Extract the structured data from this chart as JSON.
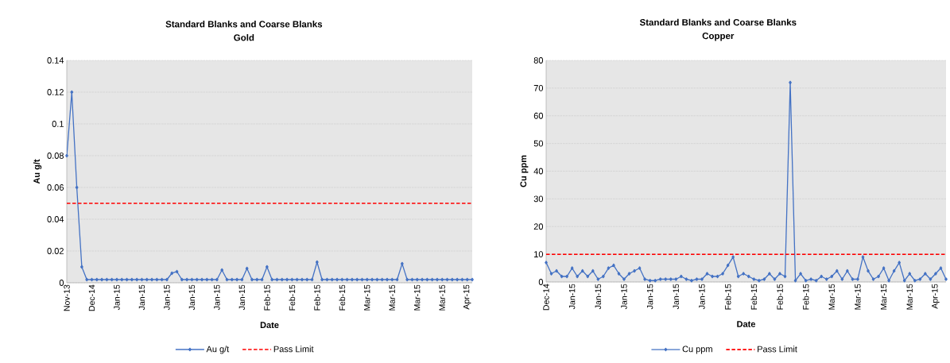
{
  "chart_data": [
    {
      "type": "line",
      "title": "Standard Blanks and Coarse Blanks",
      "subtitle": "Gold",
      "xlabel": "Date",
      "ylabel": "Au g/t",
      "categories": [
        "Nov-13",
        null,
        null,
        null,
        null,
        "Dec-14",
        null,
        null,
        null,
        null,
        "Jan-15",
        null,
        null,
        null,
        null,
        "Jan-15",
        null,
        null,
        null,
        null,
        "Jan-15",
        null,
        null,
        null,
        null,
        "Jan-15",
        null,
        null,
        null,
        null,
        "Jan-15",
        null,
        null,
        null,
        null,
        "Jan-15",
        null,
        null,
        null,
        null,
        "Feb-15",
        null,
        null,
        null,
        null,
        "Feb-15",
        null,
        null,
        null,
        null,
        "Feb-15",
        null,
        null,
        null,
        null,
        "Feb-15",
        null,
        null,
        null,
        null,
        "Mar-15",
        null,
        null,
        null,
        null,
        "Mar-15",
        null,
        null,
        null,
        null,
        "Mar-15",
        null,
        null,
        null,
        null,
        "Mar-15",
        null,
        null,
        null,
        null,
        "Apr-15",
        null
      ],
      "series": [
        {
          "name": "Au g/t",
          "color": "#4472c4",
          "values": [
            0.08,
            0.12,
            0.06,
            0.01,
            0.002,
            0.002,
            0.002,
            0.002,
            0.002,
            0.002,
            0.002,
            0.002,
            0.002,
            0.002,
            0.002,
            0.002,
            0.002,
            0.002,
            0.002,
            0.002,
            0.002,
            0.006,
            0.007,
            0.002,
            0.002,
            0.002,
            0.002,
            0.002,
            0.002,
            0.002,
            0.002,
            0.008,
            0.002,
            0.002,
            0.002,
            0.002,
            0.009,
            0.002,
            0.002,
            0.002,
            0.01,
            0.002,
            0.002,
            0.002,
            0.002,
            0.002,
            0.002,
            0.002,
            0.002,
            0.002,
            0.013,
            0.002,
            0.002,
            0.002,
            0.002,
            0.002,
            0.002,
            0.002,
            0.002,
            0.002,
            0.002,
            0.002,
            0.002,
            0.002,
            0.002,
            0.002,
            0.002,
            0.012,
            0.002,
            0.002,
            0.002,
            0.002,
            0.002,
            0.002,
            0.002,
            0.002,
            0.002,
            0.002,
            0.002,
            0.002,
            0.002,
            0.002
          ]
        }
      ],
      "ylim": [
        0,
        0.14
      ],
      "yticks": [
        0,
        0.02,
        0.04,
        0.06,
        0.08,
        0.1,
        0.12,
        0.14
      ],
      "ref_lines": [
        {
          "axis": "y",
          "value": 0.05,
          "label": "Pass Limit",
          "color": "#ff0000",
          "line_style": "dashed"
        }
      ],
      "grid": "y",
      "legend": "bottom",
      "marker": "diamond"
    },
    {
      "type": "line",
      "title": "Standard Blanks and Coarse Blanks",
      "subtitle": "Copper",
      "xlabel": "Date",
      "ylabel": "Cu ppm",
      "categories": [
        "Dec-14",
        null,
        null,
        null,
        null,
        "Jan-15",
        null,
        null,
        null,
        null,
        "Jan-15",
        null,
        null,
        null,
        null,
        "Jan-15",
        null,
        null,
        null,
        null,
        "Jan-15",
        null,
        null,
        null,
        null,
        "Jan-15",
        null,
        null,
        null,
        null,
        "Jan-15",
        null,
        null,
        null,
        null,
        "Feb-15",
        null,
        null,
        null,
        null,
        "Feb-15",
        null,
        null,
        null,
        null,
        "Feb-15",
        null,
        null,
        null,
        null,
        "Feb-15",
        null,
        null,
        null,
        null,
        "Mar-15",
        null,
        null,
        null,
        null,
        "Mar-15",
        null,
        null,
        null,
        null,
        "Mar-15",
        null,
        null,
        null,
        null,
        "Mar-15",
        null,
        null,
        null,
        null,
        "Apr-15",
        null,
        null
      ],
      "series": [
        {
          "name": "Cu ppm",
          "color": "#4472c4",
          "values": [
            7,
            3,
            4,
            2,
            2,
            5,
            2,
            4,
            2,
            4,
            1,
            2,
            5,
            6,
            3,
            1,
            3,
            4,
            5,
            1,
            0.5,
            0.5,
            1,
            1,
            1,
            1,
            2,
            1,
            0.5,
            1,
            1,
            3,
            2,
            2,
            3,
            6,
            9,
            2,
            3,
            2,
            1,
            0.5,
            1,
            3,
            1,
            3,
            2,
            72,
            0.5,
            3,
            0.5,
            1,
            0.5,
            2,
            1,
            2,
            4,
            1,
            4,
            1,
            1,
            9,
            4,
            1,
            2,
            5,
            0.5,
            4,
            7,
            0.5,
            3,
            0.5,
            1,
            3,
            1,
            3,
            5,
            1
          ]
        }
      ],
      "ylim": [
        0,
        80
      ],
      "yticks": [
        0,
        10,
        20,
        30,
        40,
        50,
        60,
        70,
        80
      ],
      "ref_lines": [
        {
          "axis": "y",
          "value": 10,
          "label": "Pass Limit",
          "color": "#ff0000",
          "line_style": "dashed"
        }
      ],
      "grid": "y",
      "legend": "bottom",
      "marker": "diamond"
    }
  ]
}
